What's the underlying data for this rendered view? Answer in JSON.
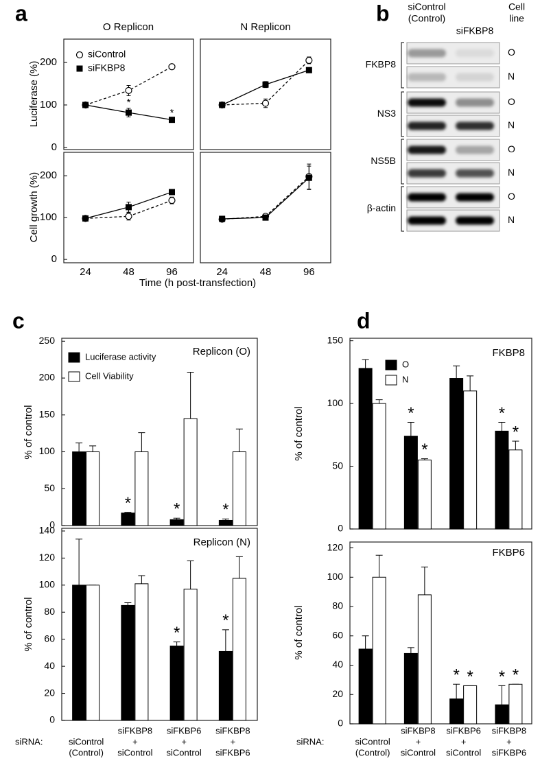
{
  "chart_data": [
    {
      "type": "line",
      "panel": "a",
      "title": "O Replicon",
      "ylabel": "Luciferase (%)",
      "ylim": [
        -5,
        255
      ],
      "yticks": [
        0,
        100,
        200
      ],
      "legend": "upper left",
      "series": [
        {
          "name": "siControl",
          "marker": "open-circle",
          "dash": true,
          "color": "#000000",
          "values": [
            100,
            134,
            190
          ],
          "errors": [
            6,
            12,
            6
          ]
        },
        {
          "name": "siFKBP8",
          "marker": "filled-square",
          "dash": false,
          "color": "#000000",
          "values": [
            100,
            82,
            65
          ],
          "errors": [
            5,
            10,
            3
          ],
          "significance": [
            null,
            "*",
            "*"
          ]
        }
      ]
    },
    {
      "type": "line",
      "title": "N Replicon",
      "ylim": [
        -5,
        255
      ],
      "series": [
        {
          "marker": "open-circle",
          "dash": true,
          "color": "#000000",
          "values": [
            100,
            104,
            205
          ],
          "errors": [
            5,
            10,
            8
          ]
        },
        {
          "marker": "filled-square",
          "dash": false,
          "color": "#000000",
          "values": [
            100,
            148,
            182
          ],
          "errors": [
            6,
            7,
            3
          ]
        }
      ]
    },
    {
      "type": "line",
      "ylabel": "Cell growth (%)",
      "xlabel": "Time (h post-transfection)",
      "categories": [
        24,
        48,
        96
      ],
      "ylim": [
        -8,
        256
      ],
      "yticks": [
        0,
        100,
        200
      ],
      "series": [
        {
          "marker": "open-circle",
          "dash": true,
          "color": "#000000",
          "values": [
            98,
            103,
            141
          ],
          "errors": [
            5,
            9,
            8
          ]
        },
        {
          "marker": "filled-square",
          "dash": false,
          "color": "#000000",
          "values": [
            98,
            125,
            161
          ],
          "errors": [
            5,
            12,
            5
          ]
        }
      ]
    },
    {
      "type": "line",
      "categories": [
        24,
        48,
        96
      ],
      "ylim": [
        -8,
        256
      ],
      "series": [
        {
          "marker": "open-circle",
          "dash": true,
          "color": "#000000",
          "values": [
            96,
            103,
            198
          ],
          "errors": [
            4,
            6,
            30
          ]
        },
        {
          "marker": "filled-square",
          "dash": false,
          "color": "#000000",
          "values": [
            97,
            100,
            195
          ],
          "errors": [
            4,
            5,
            28
          ]
        }
      ]
    },
    {
      "type": "bar",
      "panel": "c",
      "title": "Replicon (O)",
      "ylabel": "% of control",
      "ylim": [
        0,
        254
      ],
      "yticks": [
        0,
        50,
        100,
        150,
        200,
        250
      ],
      "legend": "upper left",
      "series": [
        {
          "name": "Luciferase activity",
          "color": "#000000",
          "values": [
            100,
            17,
            8,
            7
          ],
          "errors": [
            12,
            1,
            2,
            2
          ],
          "significance": [
            null,
            "*",
            "*",
            "*"
          ]
        },
        {
          "name": "Cell Viability",
          "color": "#ffffff",
          "values": [
            100,
            100,
            145,
            100
          ],
          "errors": [
            8,
            26,
            63,
            31
          ]
        }
      ]
    },
    {
      "type": "bar",
      "title": "Replicon (N)",
      "ylabel": "% of control",
      "xlabel": "siRNA:",
      "ylim": [
        0,
        142
      ],
      "yticks": [
        0,
        20,
        40,
        60,
        80,
        100,
        120,
        140
      ],
      "categories": [
        [
          "siControl",
          "(Control)"
        ],
        [
          "siFKBP8",
          "+",
          "siControl"
        ],
        [
          "siFKBP6",
          "+",
          "siControl"
        ],
        [
          "siFKBP8",
          "+",
          "siFKBP6"
        ]
      ],
      "series": [
        {
          "color": "#000000",
          "values": [
            100,
            85,
            55,
            51
          ],
          "errors": [
            34,
            2,
            3,
            16
          ],
          "significance": [
            null,
            null,
            "*",
            "*"
          ]
        },
        {
          "color": "#ffffff",
          "values": [
            100,
            101,
            97,
            105
          ],
          "errors": [
            0,
            6,
            21,
            16
          ]
        }
      ]
    },
    {
      "type": "bar",
      "panel": "d",
      "title": "FKBP8",
      "ylabel": "% of control",
      "ylim": [
        0,
        152
      ],
      "yticks": [
        0,
        50,
        100,
        150
      ],
      "legend": "upper left",
      "series": [
        {
          "name": "O",
          "color": "#000000",
          "values": [
            128,
            74,
            120,
            78
          ],
          "errors": [
            7,
            11,
            10,
            7
          ],
          "significance": [
            null,
            "*",
            null,
            "*"
          ]
        },
        {
          "name": "N",
          "color": "#ffffff",
          "values": [
            100,
            55,
            110,
            63
          ],
          "errors": [
            3,
            1,
            12,
            7
          ],
          "significance": [
            null,
            "*",
            null,
            "*"
          ]
        }
      ]
    },
    {
      "type": "bar",
      "title": "FKBP6",
      "ylabel": "% of control",
      "xlabel": "siRNA:",
      "ylim": [
        0,
        124
      ],
      "yticks": [
        0,
        20,
        40,
        60,
        80,
        100,
        120
      ],
      "categories": [
        [
          "siControl",
          "(Control)"
        ],
        [
          "siFKBP8",
          "+",
          "siControl"
        ],
        [
          "siFKBP6",
          "+",
          "siControl"
        ],
        [
          "siFKBP8",
          "+",
          "siFKBP6"
        ]
      ],
      "series": [
        {
          "color": "#000000",
          "values": [
            51,
            48,
            17,
            13
          ],
          "errors": [
            9,
            4,
            10,
            13
          ],
          "significance": [
            null,
            null,
            "*",
            "*"
          ]
        },
        {
          "color": "#ffffff",
          "values": [
            100,
            88,
            26,
            27
          ],
          "errors": [
            15,
            19,
            0,
            0
          ],
          "significance": [
            null,
            null,
            "*",
            "*"
          ]
        }
      ]
    }
  ],
  "blot": {
    "panel": "b",
    "lanes": [
      [
        "siControl",
        "(Control)"
      ],
      [
        "siFKBP8"
      ]
    ],
    "cell_line_label": [
      "Cell",
      "line"
    ],
    "proteins": [
      {
        "name": "FKBP8",
        "cell_lines": [
          "O",
          "N"
        ]
      },
      {
        "name": "NS3",
        "cell_lines": [
          "O",
          "N"
        ]
      },
      {
        "name": "NS5B",
        "cell_lines": [
          "O",
          "N"
        ]
      },
      {
        "name": "β-actin",
        "cell_lines": [
          "O",
          "N"
        ]
      }
    ]
  }
}
